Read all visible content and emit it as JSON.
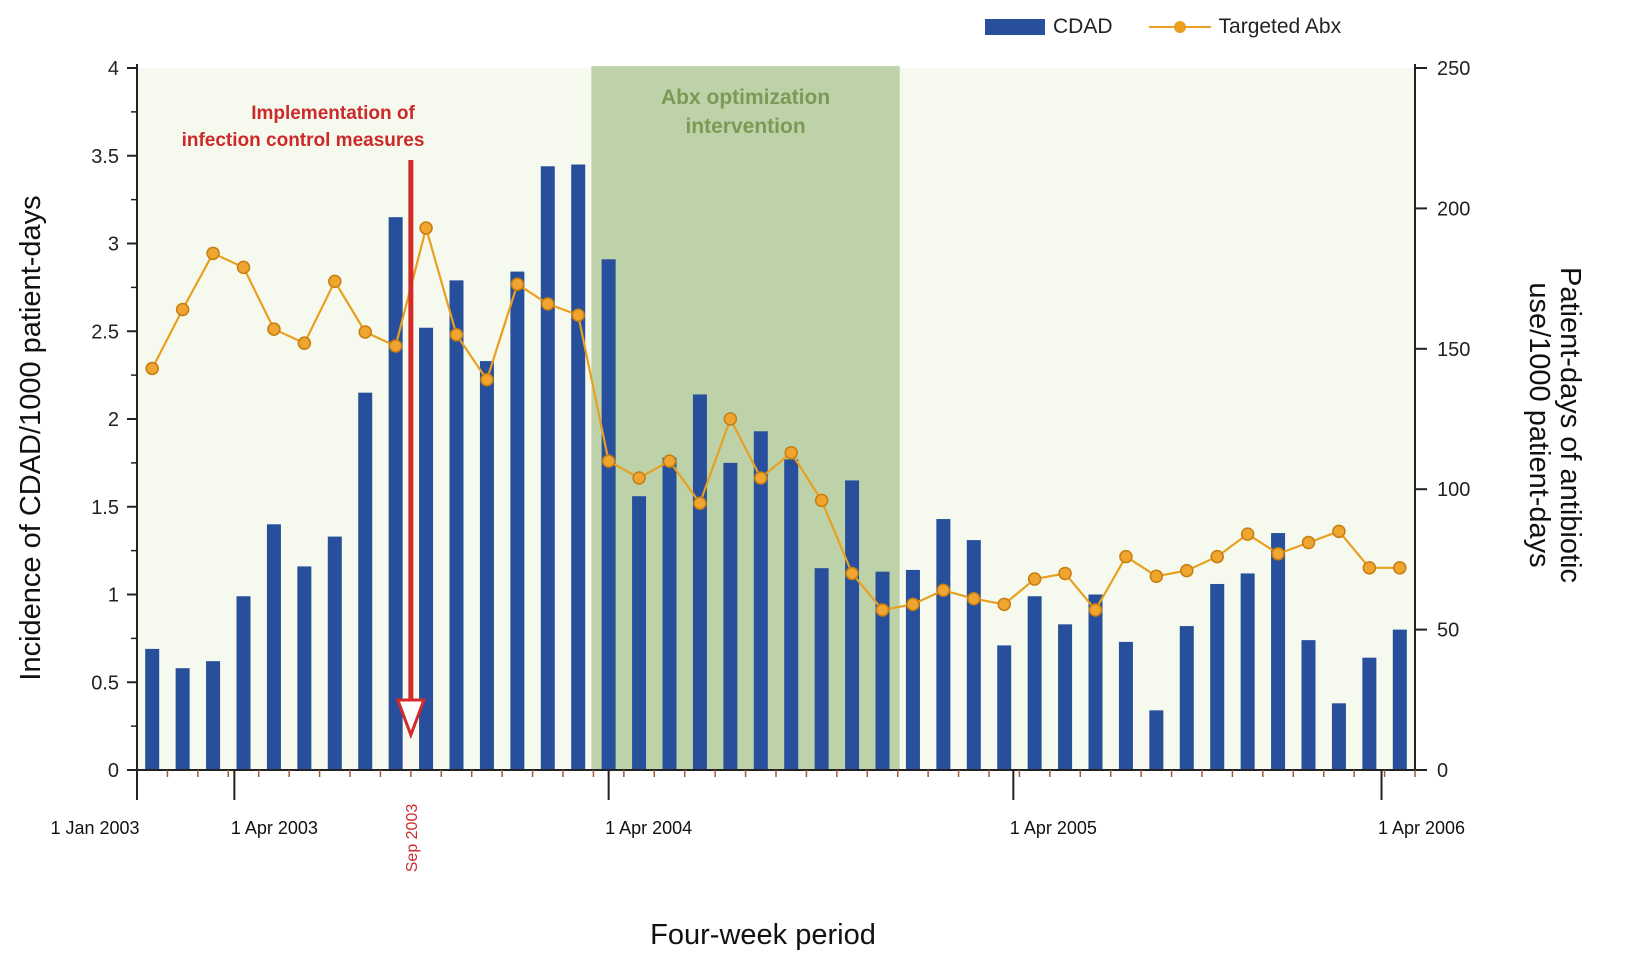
{
  "legend": {
    "cdad_label": "CDAD",
    "abx_label": "Targeted Abx"
  },
  "annotations": {
    "infection_control_line1": "Implementation of",
    "infection_control_line2": "infection control measures",
    "abx_optimization_line1": "Abx optimization",
    "abx_optimization_line2": "intervention",
    "sep_2003": "Sep 2003"
  },
  "colors": {
    "bar": "#274f9c",
    "line": "#e8a020",
    "marker": "#f0a530",
    "shade": "#b3cb9c",
    "arrow": "#d42a2a",
    "annotation_red": "#cc2a2a",
    "annotation_green": "#7a9a55",
    "background_band": "#f6f9ee"
  },
  "chart_data": {
    "type": "bar",
    "title": "",
    "xlabel": "Four-week period",
    "ylabel": "Incidence of CDAD/1000 patient-days",
    "y2label_line1": "Patient-days of antibiotic",
    "y2label_line2": "use/1000 patient-days",
    "ylim": [
      0,
      4
    ],
    "y2lim": [
      0,
      250
    ],
    "yticks": [
      "0",
      "0.5",
      "1",
      "1.5",
      "2",
      "2.5",
      "3",
      "3.5",
      "4"
    ],
    "y2ticks": [
      "0",
      "50",
      "100",
      "150",
      "200",
      "250"
    ],
    "date_labels": [
      "1 Jan 2003",
      "1 Apr 2003",
      "1 Apr 2004",
      "1 Apr 2005",
      "1 Apr 2006"
    ],
    "grid": false,
    "legend_position": "top-right",
    "periods": 42,
    "series": [
      {
        "name": "CDAD",
        "kind": "bar",
        "axis": "left",
        "values": [
          0.69,
          0.58,
          0.62,
          0.99,
          1.4,
          1.16,
          1.33,
          2.15,
          3.15,
          2.52,
          2.79,
          2.33,
          2.84,
          3.44,
          3.45,
          2.91,
          1.56,
          1.78,
          2.14,
          1.75,
          1.93,
          1.77,
          1.15,
          1.65,
          1.13,
          1.14,
          1.43,
          1.31,
          0.71,
          0.99,
          0.83,
          1.0,
          0.73,
          0.34,
          0.82,
          1.06,
          1.12,
          1.35,
          0.74,
          0.38,
          0.64,
          0.8
        ]
      },
      {
        "name": "Targeted Abx",
        "kind": "line",
        "axis": "right",
        "values": [
          143,
          164,
          184,
          179,
          157,
          152,
          174,
          156,
          151,
          193,
          155,
          139,
          173,
          166,
          162,
          110,
          104,
          110,
          95,
          125,
          104,
          113,
          96,
          70,
          57,
          59,
          64,
          61,
          59,
          68,
          70,
          57,
          76,
          69,
          71,
          76,
          84,
          77,
          81,
          85,
          72,
          72
        ]
      }
    ],
    "intervention_periods": [
      15,
      24
    ],
    "infection_control_period": 8.5
  }
}
